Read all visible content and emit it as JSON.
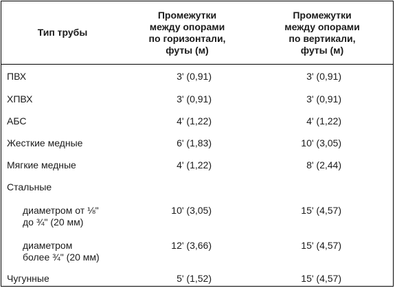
{
  "header": {
    "pipe_type": "Тип трубы",
    "horizontal": [
      "Промежутки",
      "между опорами",
      "по горизонтали,",
      "футы (м)"
    ],
    "vertical": [
      "Промежутки",
      "между опорами",
      "по вертикали,",
      "футы (м)"
    ]
  },
  "rows": [
    {
      "type": [
        "ПВХ"
      ],
      "horizontal": "3' (0,91)",
      "vertical": "3' (0,91)"
    },
    {
      "type": [
        "ХПВХ"
      ],
      "horizontal": "3' (0,91)",
      "vertical": "3' (0,91)"
    },
    {
      "type": [
        "АБС"
      ],
      "horizontal": "4' (1,22)",
      "vertical": "4' (1,22)"
    },
    {
      "type": [
        "Жесткие медные"
      ],
      "horizontal": "6' (1,83)",
      "vertical": "10' (3,05)"
    },
    {
      "type": [
        "Мягкие медные"
      ],
      "horizontal": "4' (1,22)",
      "vertical": "8' (2,44)"
    },
    {
      "type": [
        "Стальные"
      ],
      "horizontal": "",
      "vertical": ""
    },
    {
      "type": [
        "диаметром от ⅛\"",
        "до ¾\" (20 мм)"
      ],
      "horizontal": "10' (3,05)",
      "vertical": "15' (4,57)"
    },
    {
      "type": [
        "диаметром",
        "более ¾\" (20 мм)"
      ],
      "horizontal": "12' (3,66)",
      "vertical": "15' (4,57)"
    },
    {
      "type": [
        "Чугунные"
      ],
      "horizontal": "5' (1,52)",
      "vertical": "15' (4,57)"
    }
  ]
}
